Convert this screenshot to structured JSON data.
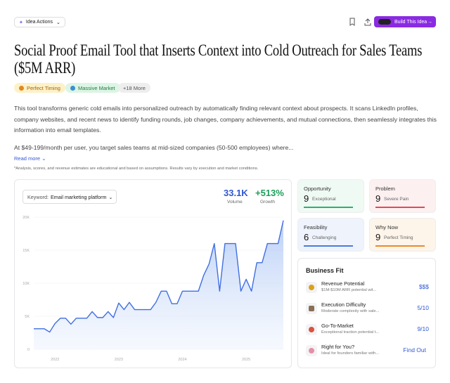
{
  "header": {
    "actions": "Idea Actions",
    "build": "Build This Idea"
  },
  "title": "Social Proof Email Tool that Inserts Context into Cold Outreach for Sales Teams ($5M ARR)",
  "tags": [
    "Perfect Timing",
    "Massive Market",
    "+18 More"
  ],
  "description": [
    "This tool transforms generic cold emails into personalized outreach by automatically finding relevant context about prospects. It scans LinkedIn profiles, company websites, and recent news to identify funding rounds, job changes, company achievements, and mutual connections, then seamlessly integrates this information into email templates.",
    "At $49-199/month per user, you target sales teams at mid-sized companies (50-500 employees) where..."
  ],
  "read_more": "Read more",
  "disclaimer": "*Analysis, scores, and revenue estimates are educational and based on assumptions. Results vary by execution and market conditions.",
  "trend": {
    "keyword_label": "Keyword:",
    "keyword": "Email marketing platform",
    "volume": "33.1K",
    "volume_label": "Volume",
    "growth": "+513%",
    "growth_label": "Growth"
  },
  "chart_data": {
    "type": "line",
    "color": "#3f6fe0",
    "categories": [
      null,
      null,
      null,
      null,
      "2022",
      null,
      null,
      null,
      null,
      null,
      null,
      null,
      null,
      null,
      null,
      null,
      "2023",
      null,
      null,
      null,
      null,
      null,
      null,
      null,
      null,
      null,
      null,
      null,
      "2024",
      null,
      null,
      null,
      null,
      null,
      null,
      null,
      null,
      null,
      null,
      null,
      "2025",
      null,
      null,
      null,
      null,
      null,
      null,
      null
    ],
    "values": [
      3100,
      3100,
      3100,
      2600,
      3900,
      4700,
      4700,
      3800,
      4700,
      4700,
      4700,
      5700,
      4800,
      4800,
      5700,
      4800,
      7000,
      6000,
      7100,
      6000,
      6000,
      6000,
      6000,
      7100,
      8800,
      8800,
      6900,
      6900,
      8800,
      8800,
      8800,
      8800,
      11200,
      12900,
      16000,
      8800,
      16000,
      16000,
      16000,
      8800,
      10600,
      8800,
      13100,
      13100,
      16000,
      16000,
      16000,
      19500
    ],
    "ylim": [
      0,
      20000
    ],
    "yticks": [
      0,
      {
        "value": 5000,
        "label": "5K"
      },
      {
        "value": 10000,
        "label": "10K"
      },
      {
        "value": 15000,
        "label": "15K"
      },
      {
        "value": 20000,
        "label": "20K"
      }
    ],
    "grid": true
  },
  "metrics": [
    {
      "name": "Opportunity",
      "score": 9,
      "label": "Exceptional"
    },
    {
      "name": "Problem",
      "score": 9,
      "label": "Severe Pain"
    },
    {
      "name": "Feasibility",
      "score": 6,
      "label": "Challenging"
    },
    {
      "name": "Why Now",
      "score": 9,
      "label": "Perfect Timing"
    }
  ],
  "business_fit": {
    "title": "Business Fit",
    "rows": [
      {
        "name": "Revenue Potential",
        "desc": "$1M-$10M ARR potential wit...",
        "value": "$$$"
      },
      {
        "name": "Execution Difficulty",
        "desc": "Moderate complexity with sale...",
        "value": "5/10"
      },
      {
        "name": "Go-To-Market",
        "desc": "Exceptional traction potential t...",
        "value": "9/10"
      },
      {
        "name": "Right for You?",
        "desc": "Ideal for founders familiar with...",
        "value": "Find Out"
      }
    ]
  }
}
